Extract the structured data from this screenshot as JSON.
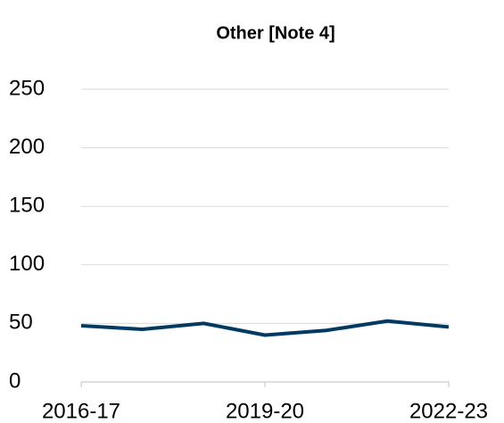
{
  "chart_data": {
    "type": "line",
    "title": "Other [Note 4]",
    "categories": [
      "2016-17",
      null,
      null,
      "2019-20",
      null,
      null,
      "2022-23"
    ],
    "series": [
      {
        "name": "Other",
        "color": "#003a63",
        "values": [
          48,
          45,
          50,
          40,
          44,
          52,
          47
        ]
      }
    ],
    "ylim": [
      0,
      250
    ],
    "yticks": [
      0,
      50,
      100,
      150,
      200,
      250
    ],
    "grid": true
  }
}
